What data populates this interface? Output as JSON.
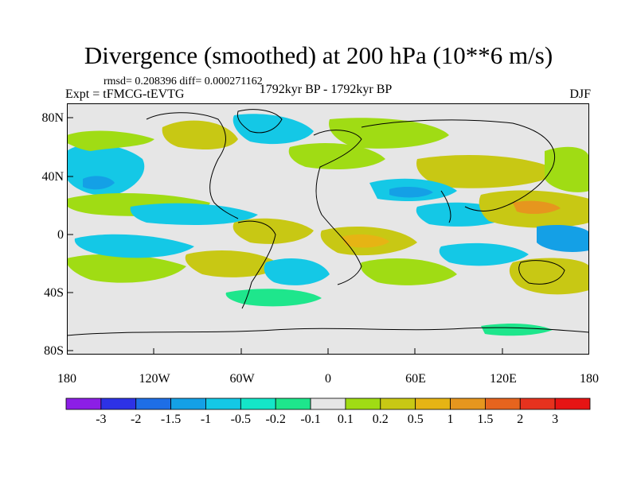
{
  "title": "Divergence (smoothed) at 200 hPa (10**6 m/s)",
  "stats": "rmsd= 0.208396 diff= 0.000271162",
  "experiment": "Expt = tFMCG-tEVTG",
  "period": "1792kyr BP - 1792kyr BP",
  "season": "DJF",
  "y_tick_labels": [
    "80N",
    "40N",
    "0",
    "40S",
    "80S"
  ],
  "x_tick_labels": [
    "180",
    "120W",
    "60W",
    "0",
    "60E",
    "120E",
    "180"
  ],
  "colorbar": {
    "labels": [
      "-3",
      "-2",
      "-1.5",
      "-1",
      "-0.5",
      "-0.2",
      "-0.1",
      "0.1",
      "0.2",
      "0.5",
      "1",
      "1.5",
      "2",
      "3"
    ],
    "colors": [
      "#8c1ee6",
      "#2d32e6",
      "#1e6ee6",
      "#14a0e6",
      "#14c8e6",
      "#14e6c8",
      "#1ee68c",
      "#e6e6e6",
      "#a0dc14",
      "#c8c814",
      "#e6b414",
      "#e6961e",
      "#e6641e",
      "#e6321e",
      "#e61414"
    ]
  },
  "map_colors": {
    "background": "#e6e6e6",
    "coast": "#000000",
    "neg_low": "#1ee68c",
    "neg_mid": "#14c8e6",
    "neg_high": "#14a0e6",
    "pos_low": "#a0dc14",
    "pos_mid": "#c8c814",
    "pos_high": "#e6b414",
    "pos_vhigh": "#e6961e"
  }
}
